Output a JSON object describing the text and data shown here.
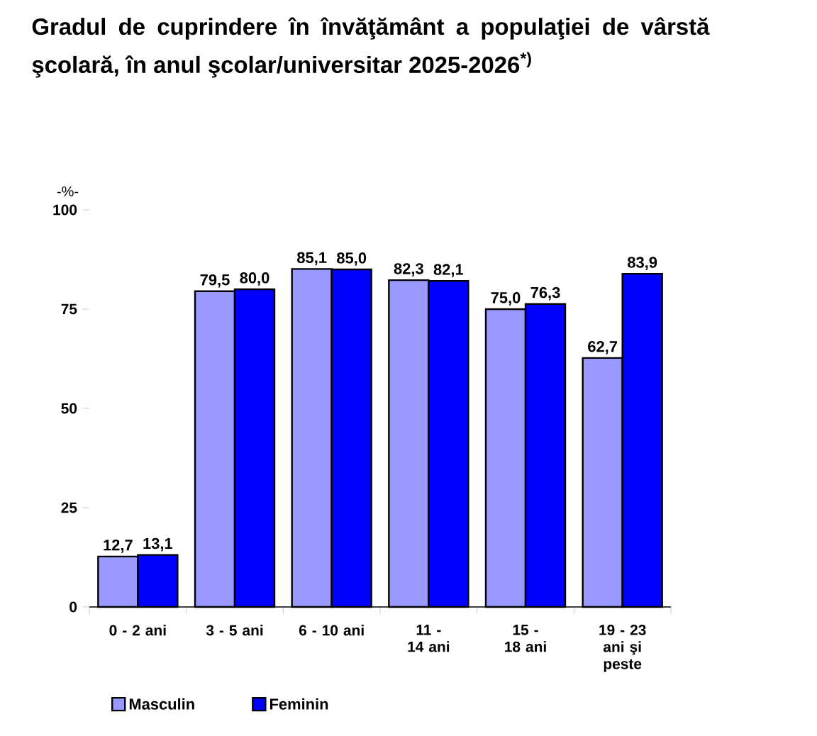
{
  "chart_data": {
    "type": "bar",
    "title": "Gradul de cuprindere în învăţământ a populaţiei de vârstă şcolară, în anul şcolar/universitar 2025-2026$^{*)}$",
    "ylabel": "-%-",
    "categories": [
      "0 - 2 ani",
      "3 - 5 ani",
      "6 - 10 ani",
      "11 - 14 ani",
      "15 - 18 ani",
      "19 - 23 ani şi peste"
    ],
    "series": [
      {
        "name": "Masculin",
        "color": "#9999ff",
        "values": [
          12.7,
          79.5,
          85.1,
          82.3,
          75.0,
          62.7
        ],
        "value_labels": [
          "12,7",
          "79,5",
          "85,1",
          "82,3",
          "75,0",
          "62,7"
        ]
      },
      {
        "name": "Feminin",
        "color": "#0000ff",
        "values": [
          13.1,
          80.0,
          85.0,
          82.1,
          76.3,
          83.9
        ],
        "value_labels": [
          "13,1",
          "80,0",
          "85,0",
          "82,1",
          "76,3",
          "83,9"
        ]
      }
    ],
    "ylim": [
      0,
      100
    ],
    "yticks": [
      0,
      25,
      50,
      75,
      100
    ],
    "grid": false,
    "legend": "bottom"
  }
}
